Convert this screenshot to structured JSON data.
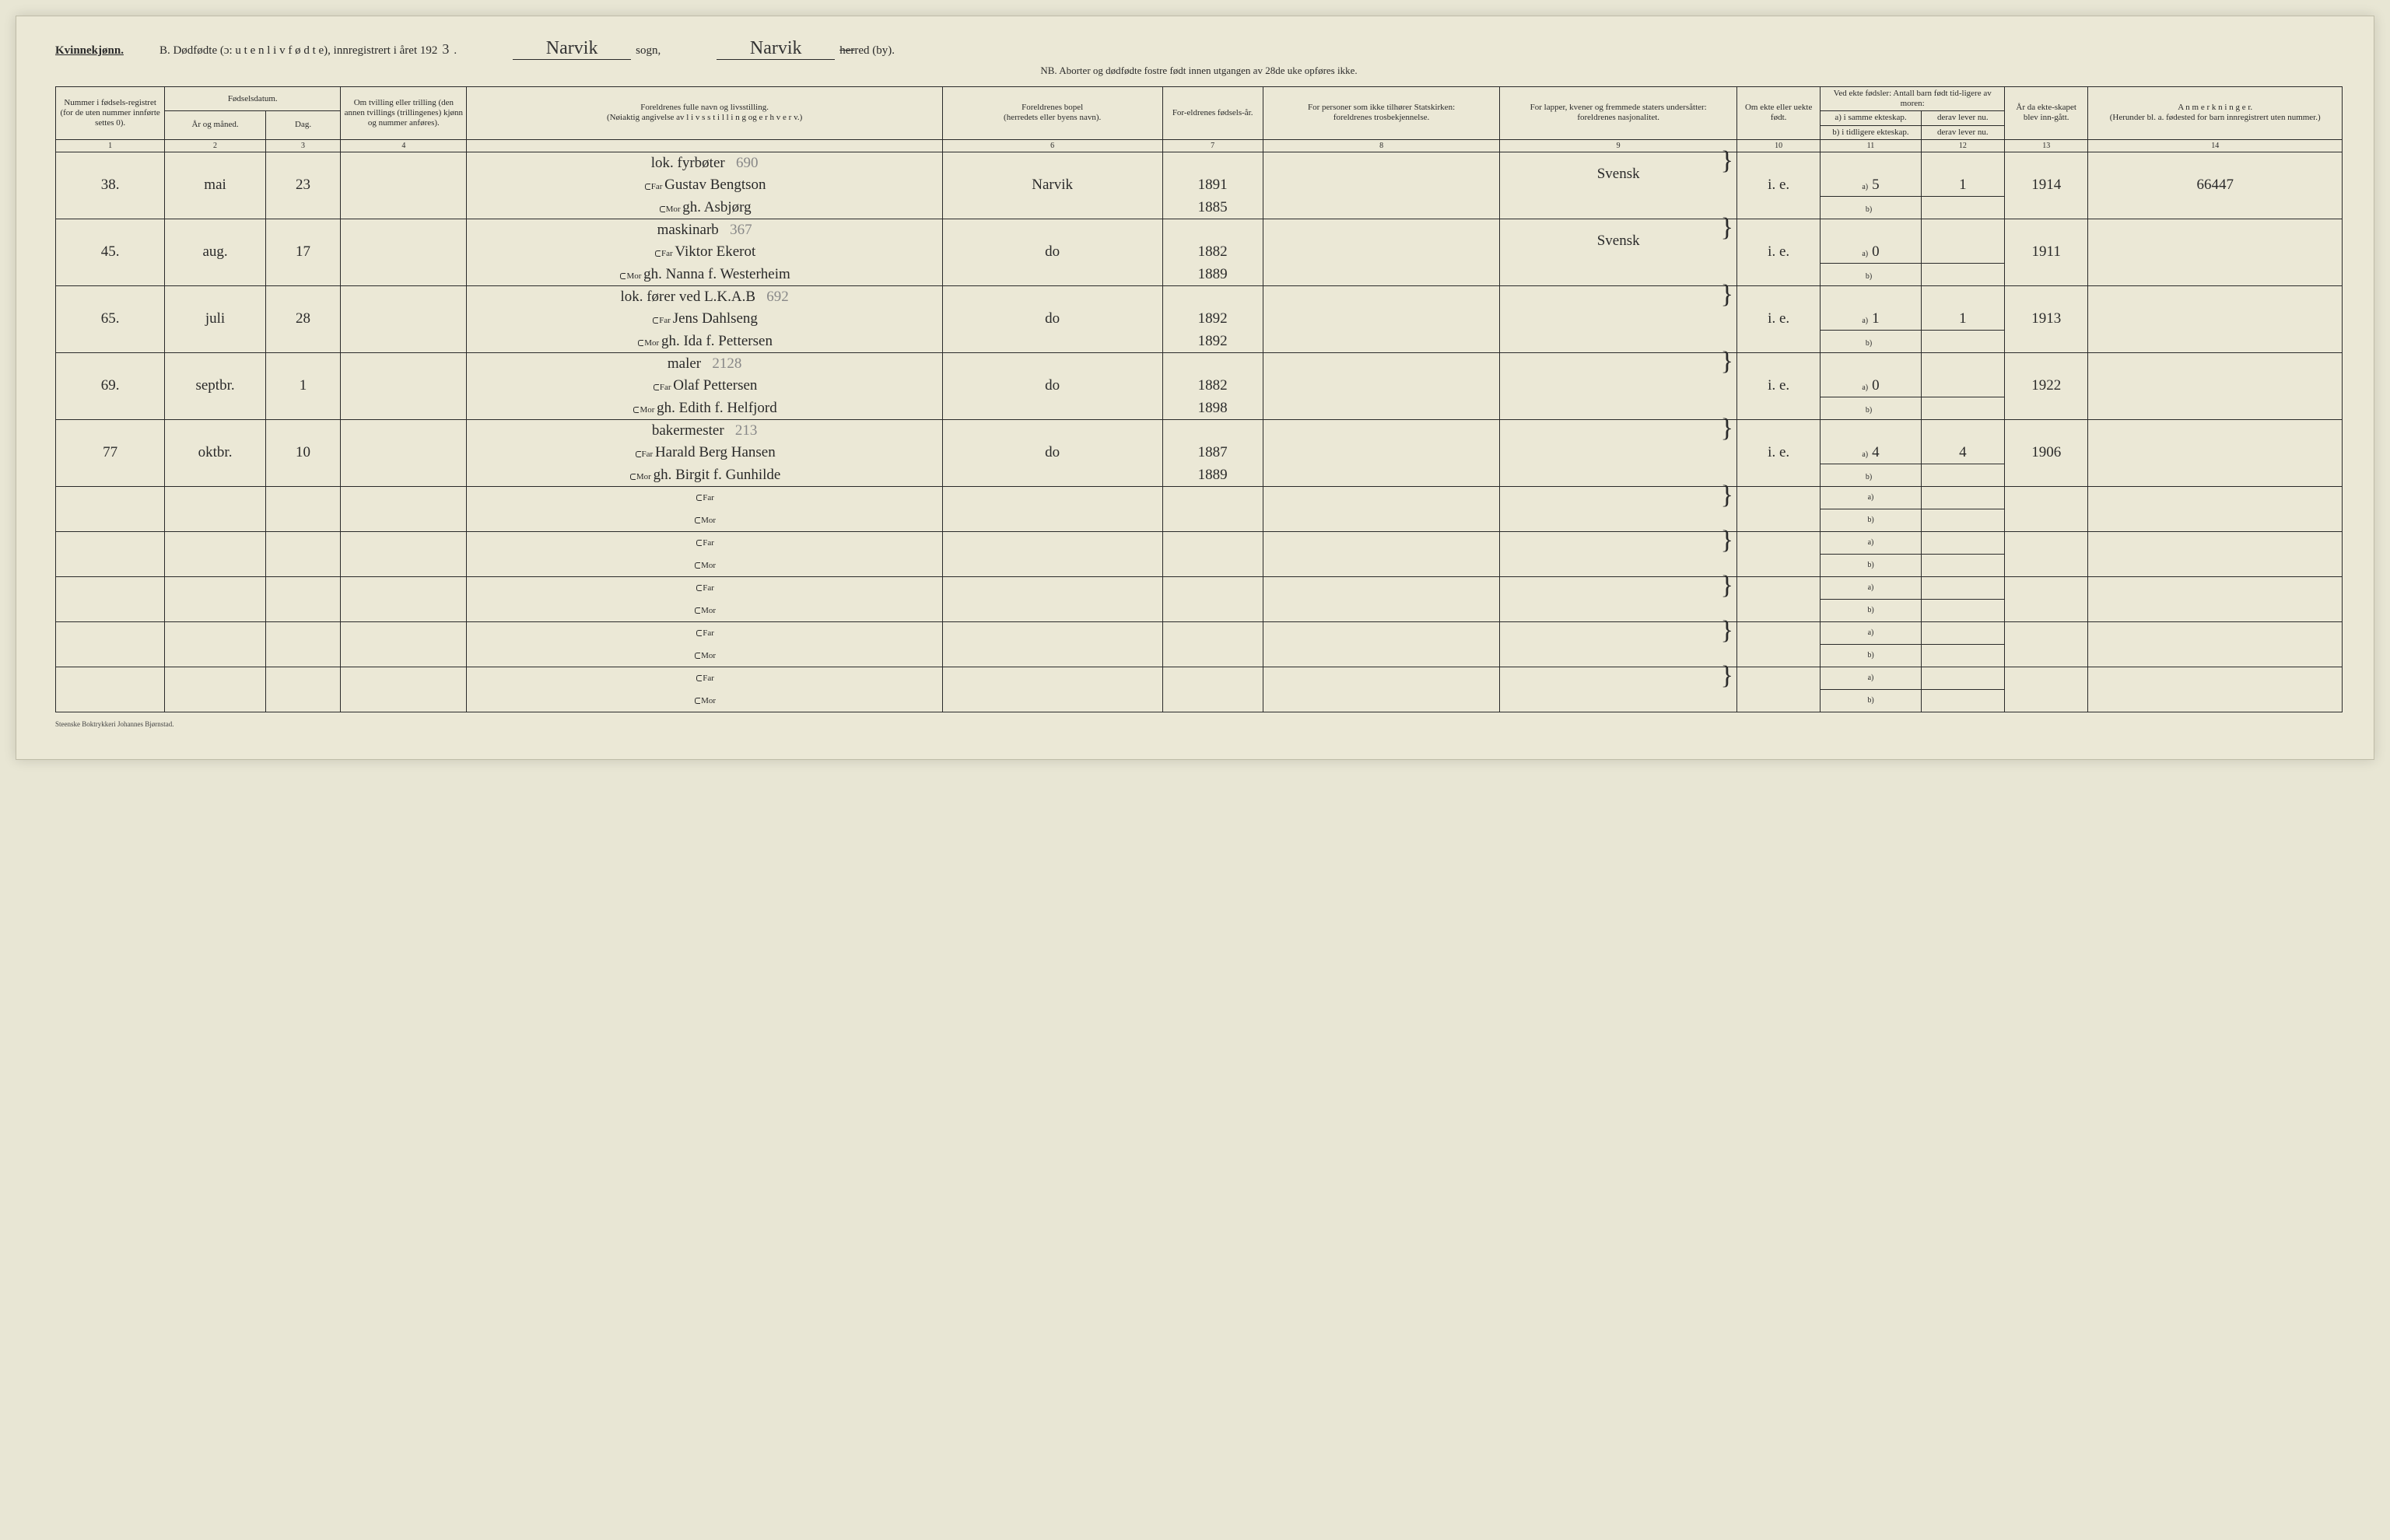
{
  "header": {
    "sex_label": "Kvinnekjønn.",
    "title_prefix": "B.  Dødfødte (ɔ:  u t e n  l i v  f ø d t e),  innregistrert i året 192",
    "year_digit": "3",
    "period1": ".",
    "sogn_hand": "Narvik",
    "sogn_label": "sogn,",
    "herred_hand": "Narvik",
    "herred_label": "herred (by).",
    "nb_line": "NB.  Aborter og dødfødte fostre født innen utgangen av 28de uke opføres ikke."
  },
  "columns": {
    "c1": "Nummer i fødsels-registret (for de uten nummer innførte settes 0).",
    "c2_top": "Fødselsdatum.",
    "c2a": "År og måned.",
    "c2b": "Dag.",
    "c4": "Om tvilling eller trilling (den annen tvillings (trillingenes) kjønn og nummer anføres).",
    "c5a": "Foreldrenes fulle navn og livsstilling.",
    "c5b": "(Nøiaktig angivelse av  l i v s s t i l l i n g  og  e r h v e r v.)",
    "c6a": "Foreldrenes bopel",
    "c6b": "(herredets eller byens navn).",
    "c7": "For-eldrenes fødsels-år.",
    "c8a": "For personer som ikke tilhører Statskirken:",
    "c8b": "foreldrenes trosbekjennelse.",
    "c9a": "For lapper, kvener og fremmede staters undersåtter:",
    "c9b": "foreldrenes nasjonalitet.",
    "c10": "Om ekte eller uekte født.",
    "c11_top": "Ved ekte fødsler: Antall barn født tid-ligere av moren:",
    "c11a": "a) i samme ekteskap.",
    "c11b": "b) i tidligere ekteskap.",
    "c12a": "derav lever nu.",
    "c12b": "derav lever nu.",
    "c13": "År da ekte-skapet blev inn-gått.",
    "c14a": "A n m e r k n i n g e r.",
    "c14b": "(Herunder bl. a. fødested for barn innregistrert uten nummer.)"
  },
  "colnums": [
    "1",
    "2",
    "3",
    "4",
    "",
    "6",
    "7",
    "8",
    "9",
    "10",
    "11",
    "12",
    "13",
    "14"
  ],
  "far_label": "Far",
  "mor_label": "Mor",
  "a_label": "a)",
  "b_label": "b)",
  "entries": [
    {
      "num": "38.",
      "month": "mai",
      "day": "23",
      "occ": "lok. fyrbøter",
      "occ_pencil": "690",
      "far": "Gustav Bengtson",
      "mor": "gh. Asbjørg",
      "bopel": "Narvik",
      "far_year": "1891",
      "mor_year": "1885",
      "nat": "Svensk",
      "ekte": "i. e.",
      "a": "5",
      "a_lever": "1",
      "b": "",
      "year_m": "1914",
      "anm": "66447"
    },
    {
      "num": "45.",
      "month": "aug.",
      "day": "17",
      "occ": "maskinarb",
      "occ_pencil": "367",
      "far": "Viktor Ekerot",
      "mor": "gh. Nanna f. Westerheim",
      "bopel": "do",
      "far_year": "1882",
      "mor_year": "1889",
      "nat": "Svensk",
      "ekte": "i. e.",
      "a": "0",
      "a_lever": "",
      "b": "",
      "year_m": "1911",
      "anm": ""
    },
    {
      "num": "65.",
      "month": "juli",
      "day": "28",
      "occ": "lok. fører ved L.K.A.B",
      "occ_pencil": "692",
      "far": "Jens Dahlseng",
      "mor": "gh. Ida f. Pettersen",
      "bopel": "do",
      "far_year": "1892",
      "mor_year": "1892",
      "nat": "",
      "ekte": "i. e.",
      "a": "1",
      "a_lever": "1",
      "b": "",
      "year_m": "1913",
      "anm": ""
    },
    {
      "num": "69.",
      "month": "septbr.",
      "day": "1",
      "occ": "maler",
      "occ_pencil": "2128",
      "far": "Olaf Pettersen",
      "mor": "gh. Edith f. Helfjord",
      "bopel": "do",
      "far_year": "1882",
      "mor_year": "1898",
      "nat": "",
      "ekte": "i. e.",
      "a": "0",
      "a_lever": "",
      "b": "",
      "year_m": "1922",
      "anm": ""
    },
    {
      "num": "77",
      "month": "oktbr.",
      "day": "10",
      "occ": "bakermester",
      "occ_pencil": "213",
      "far": "Harald Berg Hansen",
      "mor": "gh. Birgit f. Gunhilde",
      "bopel": "do",
      "far_year": "1887",
      "mor_year": "1889",
      "nat": "",
      "ekte": "i. e.",
      "a": "4",
      "a_lever": "4",
      "b": "",
      "year_m": "1906",
      "anm": ""
    }
  ],
  "empty_rows": 5,
  "footer": "Steenske Boktrykkeri Johannes Bjørnstad."
}
